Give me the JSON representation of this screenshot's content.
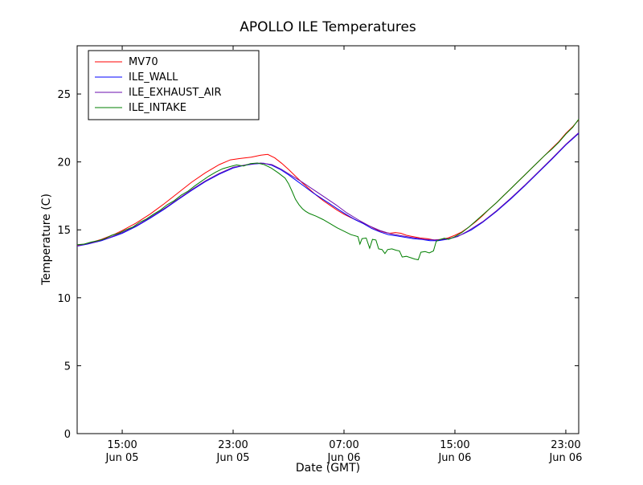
{
  "chart_data": {
    "type": "line",
    "title": "APOLLO ILE Temperatures",
    "xlabel": "Date (GMT)",
    "ylabel": "Temperature (C)",
    "x_unit": "hours since Jun 05 00:00 GMT",
    "xlim": [
      11.75,
      47.93
    ],
    "ylim": [
      0,
      28.55
    ],
    "grid": false,
    "legend": {
      "position": "upper left"
    },
    "y_ticks": [
      0,
      5,
      10,
      15,
      20,
      25
    ],
    "x_ticks": [
      {
        "t": 15,
        "time": "15:00",
        "date": "Jun 05"
      },
      {
        "t": 23,
        "time": "23:00",
        "date": "Jun 05"
      },
      {
        "t": 31,
        "time": "07:00",
        "date": "Jun 06"
      },
      {
        "t": 39,
        "time": "15:00",
        "date": "Jun 06"
      },
      {
        "t": 47,
        "time": "23:00",
        "date": "Jun 06"
      }
    ],
    "series": [
      {
        "name": "MV70",
        "color": "#ff0000",
        "points": [
          [
            11.75,
            13.85
          ],
          [
            12.5,
            14.0
          ],
          [
            13.5,
            14.3
          ],
          [
            14.5,
            14.7
          ],
          [
            15,
            14.95
          ],
          [
            16,
            15.5
          ],
          [
            17,
            16.15
          ],
          [
            18,
            16.9
          ],
          [
            19,
            17.7
          ],
          [
            20,
            18.5
          ],
          [
            21,
            19.2
          ],
          [
            22,
            19.8
          ],
          [
            22.8,
            20.15
          ],
          [
            23.5,
            20.25
          ],
          [
            24.3,
            20.35
          ],
          [
            25,
            20.5
          ],
          [
            25.5,
            20.55
          ],
          [
            26,
            20.3
          ],
          [
            26.5,
            19.9
          ],
          [
            27,
            19.45
          ],
          [
            27.5,
            18.95
          ],
          [
            28,
            18.45
          ],
          [
            28.5,
            18.0
          ],
          [
            29,
            17.55
          ],
          [
            29.5,
            17.15
          ],
          [
            30,
            16.8
          ],
          [
            30.5,
            16.45
          ],
          [
            31,
            16.15
          ],
          [
            31.5,
            15.9
          ],
          [
            32,
            15.65
          ],
          [
            32.5,
            15.45
          ],
          [
            33,
            15.2
          ],
          [
            33.5,
            14.95
          ],
          [
            34,
            14.8
          ],
          [
            34.3,
            14.75
          ],
          [
            34.7,
            14.8
          ],
          [
            35.1,
            14.75
          ],
          [
            35.5,
            14.6
          ],
          [
            36,
            14.5
          ],
          [
            36.5,
            14.4
          ],
          [
            37,
            14.35
          ],
          [
            37.5,
            14.25
          ],
          [
            38,
            14.3
          ],
          [
            38.5,
            14.4
          ],
          [
            39,
            14.6
          ],
          [
            39.5,
            14.85
          ],
          [
            40,
            15.2
          ],
          [
            40.5,
            15.6
          ],
          [
            41,
            16.05
          ],
          [
            41.5,
            16.55
          ],
          [
            42,
            17.0
          ],
          [
            42.5,
            17.5
          ],
          [
            43,
            18.0
          ],
          [
            43.5,
            18.5
          ],
          [
            44,
            19.0
          ],
          [
            44.5,
            19.5
          ],
          [
            45,
            20.0
          ],
          [
            45.5,
            20.5
          ],
          [
            46,
            21.0
          ],
          [
            46.5,
            21.5
          ],
          [
            47,
            22.1
          ],
          [
            47.5,
            22.6
          ],
          [
            47.93,
            23.1
          ]
        ]
      },
      {
        "name": "ILE_WALL",
        "color": "#0000ff",
        "points": [
          [
            11.75,
            13.8
          ],
          [
            12.5,
            13.95
          ],
          [
            13.5,
            14.2
          ],
          [
            14.5,
            14.55
          ],
          [
            15,
            14.75
          ],
          [
            16,
            15.25
          ],
          [
            17,
            15.85
          ],
          [
            18,
            16.5
          ],
          [
            19,
            17.2
          ],
          [
            20,
            17.9
          ],
          [
            21,
            18.55
          ],
          [
            22,
            19.1
          ],
          [
            23,
            19.55
          ],
          [
            23.8,
            19.75
          ],
          [
            24.5,
            19.85
          ],
          [
            25.2,
            19.9
          ],
          [
            25.8,
            19.75
          ],
          [
            26.4,
            19.45
          ],
          [
            27,
            19.05
          ],
          [
            27.6,
            18.6
          ],
          [
            28.2,
            18.15
          ],
          [
            28.8,
            17.7
          ],
          [
            29.4,
            17.3
          ],
          [
            30,
            16.9
          ],
          [
            30.6,
            16.5
          ],
          [
            31.2,
            16.1
          ],
          [
            31.8,
            15.75
          ],
          [
            32.4,
            15.45
          ],
          [
            33,
            15.1
          ],
          [
            33.6,
            14.85
          ],
          [
            34.2,
            14.65
          ],
          [
            34.8,
            14.55
          ],
          [
            35.4,
            14.45
          ],
          [
            36,
            14.35
          ],
          [
            36.6,
            14.3
          ],
          [
            37.2,
            14.2
          ],
          [
            37.8,
            14.2
          ],
          [
            38.4,
            14.3
          ],
          [
            39,
            14.45
          ],
          [
            39.6,
            14.7
          ],
          [
            40.2,
            15.0
          ],
          [
            41,
            15.55
          ],
          [
            42,
            16.35
          ],
          [
            43,
            17.25
          ],
          [
            44,
            18.2
          ],
          [
            45,
            19.2
          ],
          [
            46,
            20.2
          ],
          [
            47,
            21.25
          ],
          [
            47.5,
            21.7
          ],
          [
            47.93,
            22.1
          ]
        ]
      },
      {
        "name": "ILE_EXHAUST_AIR",
        "color": "#6a0dad",
        "points": [
          [
            11.75,
            13.82
          ],
          [
            13,
            14.1
          ],
          [
            14,
            14.4
          ],
          [
            15,
            14.8
          ],
          [
            16,
            15.3
          ],
          [
            17,
            15.9
          ],
          [
            18,
            16.55
          ],
          [
            19,
            17.25
          ],
          [
            20,
            17.95
          ],
          [
            21,
            18.6
          ],
          [
            22,
            19.15
          ],
          [
            23,
            19.6
          ],
          [
            24,
            19.8
          ],
          [
            25,
            19.92
          ],
          [
            25.8,
            19.8
          ],
          [
            26.5,
            19.45
          ],
          [
            27.2,
            19.0
          ],
          [
            28,
            18.5
          ],
          [
            28.8,
            17.95
          ],
          [
            29.6,
            17.4
          ],
          [
            30.4,
            16.85
          ],
          [
            31.2,
            16.25
          ],
          [
            32,
            15.75
          ],
          [
            32.8,
            15.3
          ],
          [
            33.6,
            14.95
          ],
          [
            34.4,
            14.7
          ],
          [
            35.2,
            14.55
          ],
          [
            36,
            14.42
          ],
          [
            36.8,
            14.3
          ],
          [
            37.6,
            14.25
          ],
          [
            38.4,
            14.32
          ],
          [
            39.2,
            14.5
          ],
          [
            40,
            14.95
          ],
          [
            41,
            15.6
          ],
          [
            42,
            16.4
          ],
          [
            43,
            17.3
          ],
          [
            44,
            18.25
          ],
          [
            45,
            19.25
          ],
          [
            46,
            20.25
          ],
          [
            47,
            21.3
          ],
          [
            47.93,
            22.15
          ]
        ]
      },
      {
        "name": "ILE_INTAKE",
        "color": "#007f00",
        "points": [
          [
            11.75,
            13.9
          ],
          [
            12.25,
            13.95
          ],
          [
            12.75,
            14.1
          ],
          [
            13.25,
            14.2
          ],
          [
            13.75,
            14.35
          ],
          [
            14.25,
            14.6
          ],
          [
            14.75,
            14.75
          ],
          [
            15.25,
            15.0
          ],
          [
            15.75,
            15.2
          ],
          [
            16.25,
            15.55
          ],
          [
            16.75,
            15.8
          ],
          [
            17.25,
            16.15
          ],
          [
            17.75,
            16.45
          ],
          [
            18.25,
            16.85
          ],
          [
            18.75,
            17.15
          ],
          [
            19.25,
            17.55
          ],
          [
            19.75,
            17.85
          ],
          [
            20.25,
            18.25
          ],
          [
            20.75,
            18.6
          ],
          [
            21.25,
            18.95
          ],
          [
            21.75,
            19.25
          ],
          [
            22.25,
            19.5
          ],
          [
            22.75,
            19.65
          ],
          [
            23.25,
            19.78
          ],
          [
            23.75,
            19.7
          ],
          [
            24.25,
            19.88
          ],
          [
            24.75,
            19.92
          ],
          [
            25.25,
            19.8
          ],
          [
            25.75,
            19.55
          ],
          [
            26.25,
            19.2
          ],
          [
            26.75,
            18.8
          ],
          [
            27.0,
            18.4
          ],
          [
            27.25,
            17.85
          ],
          [
            27.5,
            17.25
          ],
          [
            27.75,
            16.85
          ],
          [
            28.0,
            16.55
          ],
          [
            28.25,
            16.35
          ],
          [
            28.5,
            16.2
          ],
          [
            29.0,
            16.0
          ],
          [
            29.5,
            15.75
          ],
          [
            30.0,
            15.45
          ],
          [
            30.5,
            15.15
          ],
          [
            31.0,
            14.9
          ],
          [
            31.5,
            14.65
          ],
          [
            32.0,
            14.5
          ],
          [
            32.15,
            13.95
          ],
          [
            32.3,
            14.35
          ],
          [
            32.6,
            14.4
          ],
          [
            32.85,
            13.65
          ],
          [
            33.05,
            14.3
          ],
          [
            33.3,
            14.25
          ],
          [
            33.5,
            13.6
          ],
          [
            33.75,
            13.55
          ],
          [
            33.95,
            13.25
          ],
          [
            34.15,
            13.55
          ],
          [
            34.45,
            13.6
          ],
          [
            34.75,
            13.5
          ],
          [
            35.0,
            13.45
          ],
          [
            35.2,
            13.0
          ],
          [
            35.5,
            13.05
          ],
          [
            35.8,
            12.95
          ],
          [
            36.1,
            12.85
          ],
          [
            36.35,
            12.8
          ],
          [
            36.55,
            13.35
          ],
          [
            36.85,
            13.4
          ],
          [
            37.15,
            13.3
          ],
          [
            37.45,
            13.45
          ],
          [
            37.65,
            14.15
          ],
          [
            37.95,
            14.3
          ],
          [
            38.25,
            14.38
          ],
          [
            38.55,
            14.3
          ],
          [
            39.0,
            14.5
          ],
          [
            39.5,
            14.8
          ],
          [
            40.0,
            15.2
          ],
          [
            40.5,
            15.65
          ],
          [
            41.0,
            16.1
          ],
          [
            41.5,
            16.55
          ],
          [
            42.0,
            17.0
          ],
          [
            42.5,
            17.5
          ],
          [
            43.0,
            18.0
          ],
          [
            43.5,
            18.5
          ],
          [
            44.0,
            19.0
          ],
          [
            44.5,
            19.5
          ],
          [
            45.0,
            20.0
          ],
          [
            45.5,
            20.5
          ],
          [
            46.0,
            20.95
          ],
          [
            46.5,
            21.45
          ],
          [
            47.0,
            22.05
          ],
          [
            47.5,
            22.55
          ],
          [
            47.93,
            23.15
          ]
        ]
      }
    ]
  }
}
